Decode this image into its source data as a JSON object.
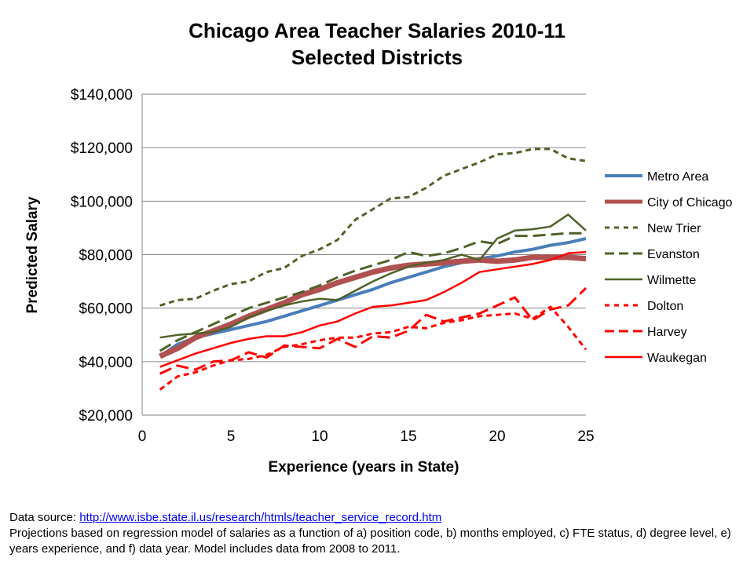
{
  "chart_data": {
    "type": "line",
    "title": "Chicago Area Teacher Salaries 2010-11",
    "subtitle": "Selected Districts",
    "xlabel": "Experience (years in State)",
    "ylabel": "Predicted Salary",
    "xlim": [
      0,
      25
    ],
    "ylim": [
      20000,
      140000
    ],
    "xticks": [
      0,
      5,
      10,
      15,
      20,
      25
    ],
    "xtick_labels": [
      "0",
      "5",
      "10",
      "15",
      "20",
      "25"
    ],
    "yticks": [
      20000,
      40000,
      60000,
      80000,
      100000,
      120000,
      140000
    ],
    "ytick_labels": [
      "$20,000",
      "$40,000",
      "$60,000",
      "$80,000",
      "$100,000",
      "$120,000",
      "$140,000"
    ],
    "grid": "horizontal",
    "legend_position": "right",
    "x": [
      1,
      2,
      3,
      4,
      5,
      6,
      7,
      8,
      9,
      10,
      11,
      12,
      13,
      14,
      15,
      16,
      17,
      18,
      19,
      20,
      21,
      22,
      23,
      24,
      25
    ],
    "series": [
      {
        "name": "Metro Area",
        "color": "#4a7ebb",
        "style": "solid",
        "width": 4,
        "values": [
          42000,
          46500,
          49000,
          50500,
          52000,
          53500,
          55000,
          57000,
          59000,
          61000,
          63000,
          65000,
          67000,
          69500,
          71500,
          73500,
          75500,
          77000,
          78500,
          79500,
          81000,
          82000,
          83500,
          84500,
          86000
        ]
      },
      {
        "name": "City of Chicago",
        "color": "#b05050",
        "style": "solid",
        "width": 7,
        "values": [
          42000,
          45000,
          49000,
          51500,
          54000,
          57000,
          59500,
          62000,
          65000,
          67000,
          69500,
          71500,
          73500,
          75000,
          76000,
          76500,
          77000,
          77500,
          78000,
          77500,
          78000,
          79000,
          79000,
          79000,
          78500
        ]
      },
      {
        "name": "New Trier",
        "color": "#4f6228",
        "style": "dash",
        "width": 3,
        "values": [
          61000,
          63000,
          63500,
          66500,
          69000,
          70000,
          73500,
          75000,
          79500,
          82000,
          85500,
          93000,
          97000,
          101000,
          101500,
          105000,
          109500,
          112000,
          114500,
          117500,
          118000,
          119500,
          119500,
          116000,
          115000
        ]
      },
      {
        "name": "Evanston",
        "color": "#4f6228",
        "style": "longdash",
        "width": 3,
        "values": [
          44000,
          48000,
          51000,
          54000,
          57000,
          60000,
          62000,
          64000,
          66000,
          68500,
          71500,
          74000,
          76000,
          78000,
          81000,
          79500,
          80500,
          82500,
          85000,
          84000,
          87000,
          87000,
          87500,
          88000,
          88000
        ]
      },
      {
        "name": "Wilmette",
        "color": "#4f6228",
        "style": "solid",
        "width": 2.5,
        "values": [
          49000,
          50000,
          50500,
          51000,
          53000,
          56500,
          59000,
          61000,
          62500,
          63500,
          63000,
          66500,
          70000,
          73000,
          75500,
          77000,
          78000,
          80000,
          78000,
          86000,
          89000,
          89500,
          90500,
          95000,
          89000
        ]
      },
      {
        "name": "Dolton",
        "color": "#ff0000",
        "style": "dash",
        "width": 3,
        "values": [
          29500,
          34500,
          36000,
          38500,
          40500,
          41000,
          42500,
          45500,
          46500,
          48000,
          49000,
          49000,
          50500,
          51000,
          53000,
          52500,
          54500,
          55500,
          57000,
          57500,
          58000,
          56000,
          60500,
          53000,
          44500
        ]
      },
      {
        "name": "Harvey",
        "color": "#ff0000",
        "style": "longdash",
        "width": 3,
        "values": [
          35500,
          38500,
          37000,
          40000,
          40500,
          43500,
          41500,
          46000,
          45500,
          45000,
          48500,
          45500,
          49500,
          49000,
          51500,
          57500,
          55000,
          56500,
          58000,
          61000,
          64000,
          55500,
          59500,
          61000,
          67500
        ]
      },
      {
        "name": "Waukegan",
        "color": "#ff0000",
        "style": "solid",
        "width": 2.5,
        "values": [
          38000,
          40500,
          43000,
          45000,
          47000,
          48500,
          49500,
          49500,
          51000,
          53500,
          55000,
          58000,
          60500,
          61000,
          62000,
          63000,
          66000,
          69500,
          73500,
          74500,
          75500,
          76500,
          78000,
          80500,
          81000
        ]
      }
    ]
  },
  "footer": {
    "source_label": "Data source: ",
    "source_link": "http://www.isbe.state.il.us/research/htmls/teacher_service_record.htm",
    "note": "Projections based on regression model of salaries as a function of a) position code, b) months employed, c) FTE status, d) degree level, e) years experience, and f) data year. Model includes data from 2008 to 2011."
  }
}
